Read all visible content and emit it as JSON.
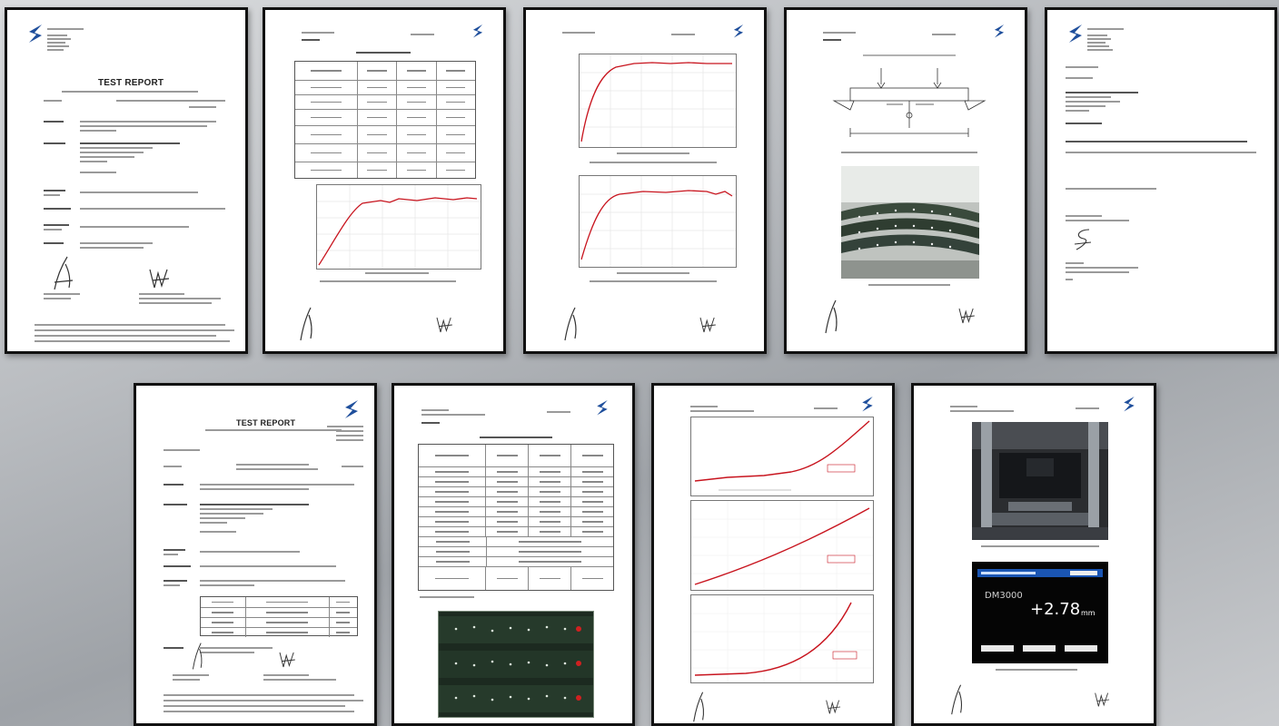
{
  "pages": [
    {
      "id": "p1",
      "kind": "test-report",
      "title": "TEST REPORT"
    },
    {
      "id": "p2",
      "kind": "table-and-chart"
    },
    {
      "id": "p3",
      "kind": "two-charts"
    },
    {
      "id": "p4",
      "kind": "diagram-and-photo"
    },
    {
      "id": "p5",
      "kind": "letter"
    },
    {
      "id": "p6",
      "kind": "test-report",
      "title": "TEST REPORT"
    },
    {
      "id": "p7",
      "kind": "table-and-photo"
    },
    {
      "id": "p8",
      "kind": "three-charts"
    },
    {
      "id": "p9",
      "kind": "two-photos",
      "display_prefix": "DM3000",
      "display_value": "+2.78",
      "display_unit": "mm"
    }
  ],
  "colors": {
    "curve": "#c8141e",
    "logo": "#1f4f9c",
    "frame": "#111111"
  }
}
